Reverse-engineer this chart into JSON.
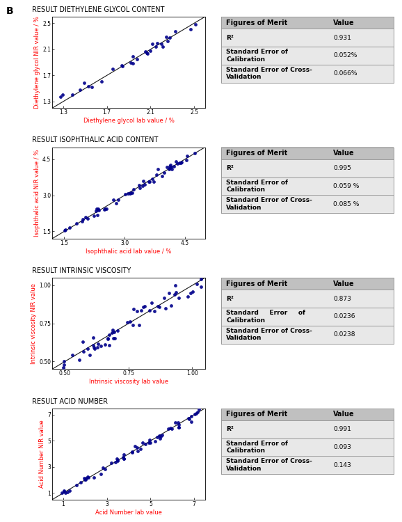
{
  "panels": [
    {
      "title": "RESULT DIETHYLENE GLYCOL CONTENT",
      "xlabel": "Diethylene glycol lab value / %",
      "ylabel": "Diethylene glycol NIR value / %",
      "xlim": [
        1.2,
        2.6
      ],
      "ylim": [
        1.2,
        2.6
      ],
      "xticks": [
        1.3,
        1.7,
        2.1,
        2.5
      ],
      "yticks": [
        1.3,
        1.7,
        2.1,
        2.5
      ],
      "figures_of_merit": [
        [
          "R²",
          "0.931"
        ],
        [
          "Standard Error of\nCalibration",
          "0.052%"
        ],
        [
          "Standard Error of Cross-\nValidation",
          "0.066%"
        ]
      ],
      "scatter_seed": 10,
      "scatter_n": 30,
      "scatter_spread": 0.055
    },
    {
      "title": "RESULT ISOPHTHALIC ACID CONTENT",
      "xlabel": "Isophthalic acid lab value / %",
      "ylabel": "Isophthalic acid NIR value / %",
      "xlim": [
        1.2,
        5.0
      ],
      "ylim": [
        1.2,
        5.0
      ],
      "xticks": [
        1.5,
        3.0,
        4.5
      ],
      "yticks": [
        1.5,
        3.0,
        4.5
      ],
      "figures_of_merit": [
        [
          "R²",
          "0.995"
        ],
        [
          "Standard Error of\nCalibration",
          "0.059 %"
        ],
        [
          "Standard Error of Cross-\nValidation",
          "0.085 %"
        ]
      ],
      "scatter_seed": 20,
      "scatter_n": 55,
      "scatter_spread": 0.018
    },
    {
      "title": "RESULT INTRINSIC VISCOSITY",
      "xlabel": "Intrinsic viscosity lab value",
      "ylabel": "Intrinsic viscosity NIR value",
      "xlim": [
        0.45,
        1.05
      ],
      "ylim": [
        0.45,
        1.05
      ],
      "xticks": [
        0.5,
        0.75,
        1.0
      ],
      "yticks": [
        0.5,
        0.75,
        1.0
      ],
      "figures_of_merit": [
        [
          "R²",
          "0.873"
        ],
        [
          "Standard     Error     of\nCalibration",
          "0.0236"
        ],
        [
          "Standard Error of Cross-\nValidation",
          "0.0238"
        ]
      ],
      "scatter_seed": 30,
      "scatter_n": 55,
      "scatter_spread": 0.065
    },
    {
      "title": "RESULT ACID NUMBER",
      "xlabel": "Acid Number lab value",
      "ylabel": "Acid Number NIR value",
      "xlim": [
        0.5,
        7.5
      ],
      "ylim": [
        0.5,
        7.5
      ],
      "xticks": [
        1.0,
        3.0,
        5.0,
        7.0
      ],
      "yticks": [
        1.0,
        3.0,
        5.0,
        7.0
      ],
      "figures_of_merit": [
        [
          "R²",
          "0.991"
        ],
        [
          "Standard Error of\nCalibration",
          "0.093"
        ],
        [
          "Standard Error of Cross-\nValidation",
          "0.143"
        ]
      ],
      "scatter_seed": 40,
      "scatter_n": 60,
      "scatter_spread": 0.02
    }
  ],
  "scatter_color": "#00008B",
  "line_color": "#1a1a1a",
  "header_bg": "#C0C0C0",
  "row_bg": "#E8E8E8",
  "sep_color": "#999999",
  "title_fontsize": 7.0,
  "axis_label_fontsize": 6.0,
  "tick_fontsize": 5.5,
  "table_header_fontsize": 7.0,
  "table_row_fontsize": 6.5,
  "marker_size": 12
}
